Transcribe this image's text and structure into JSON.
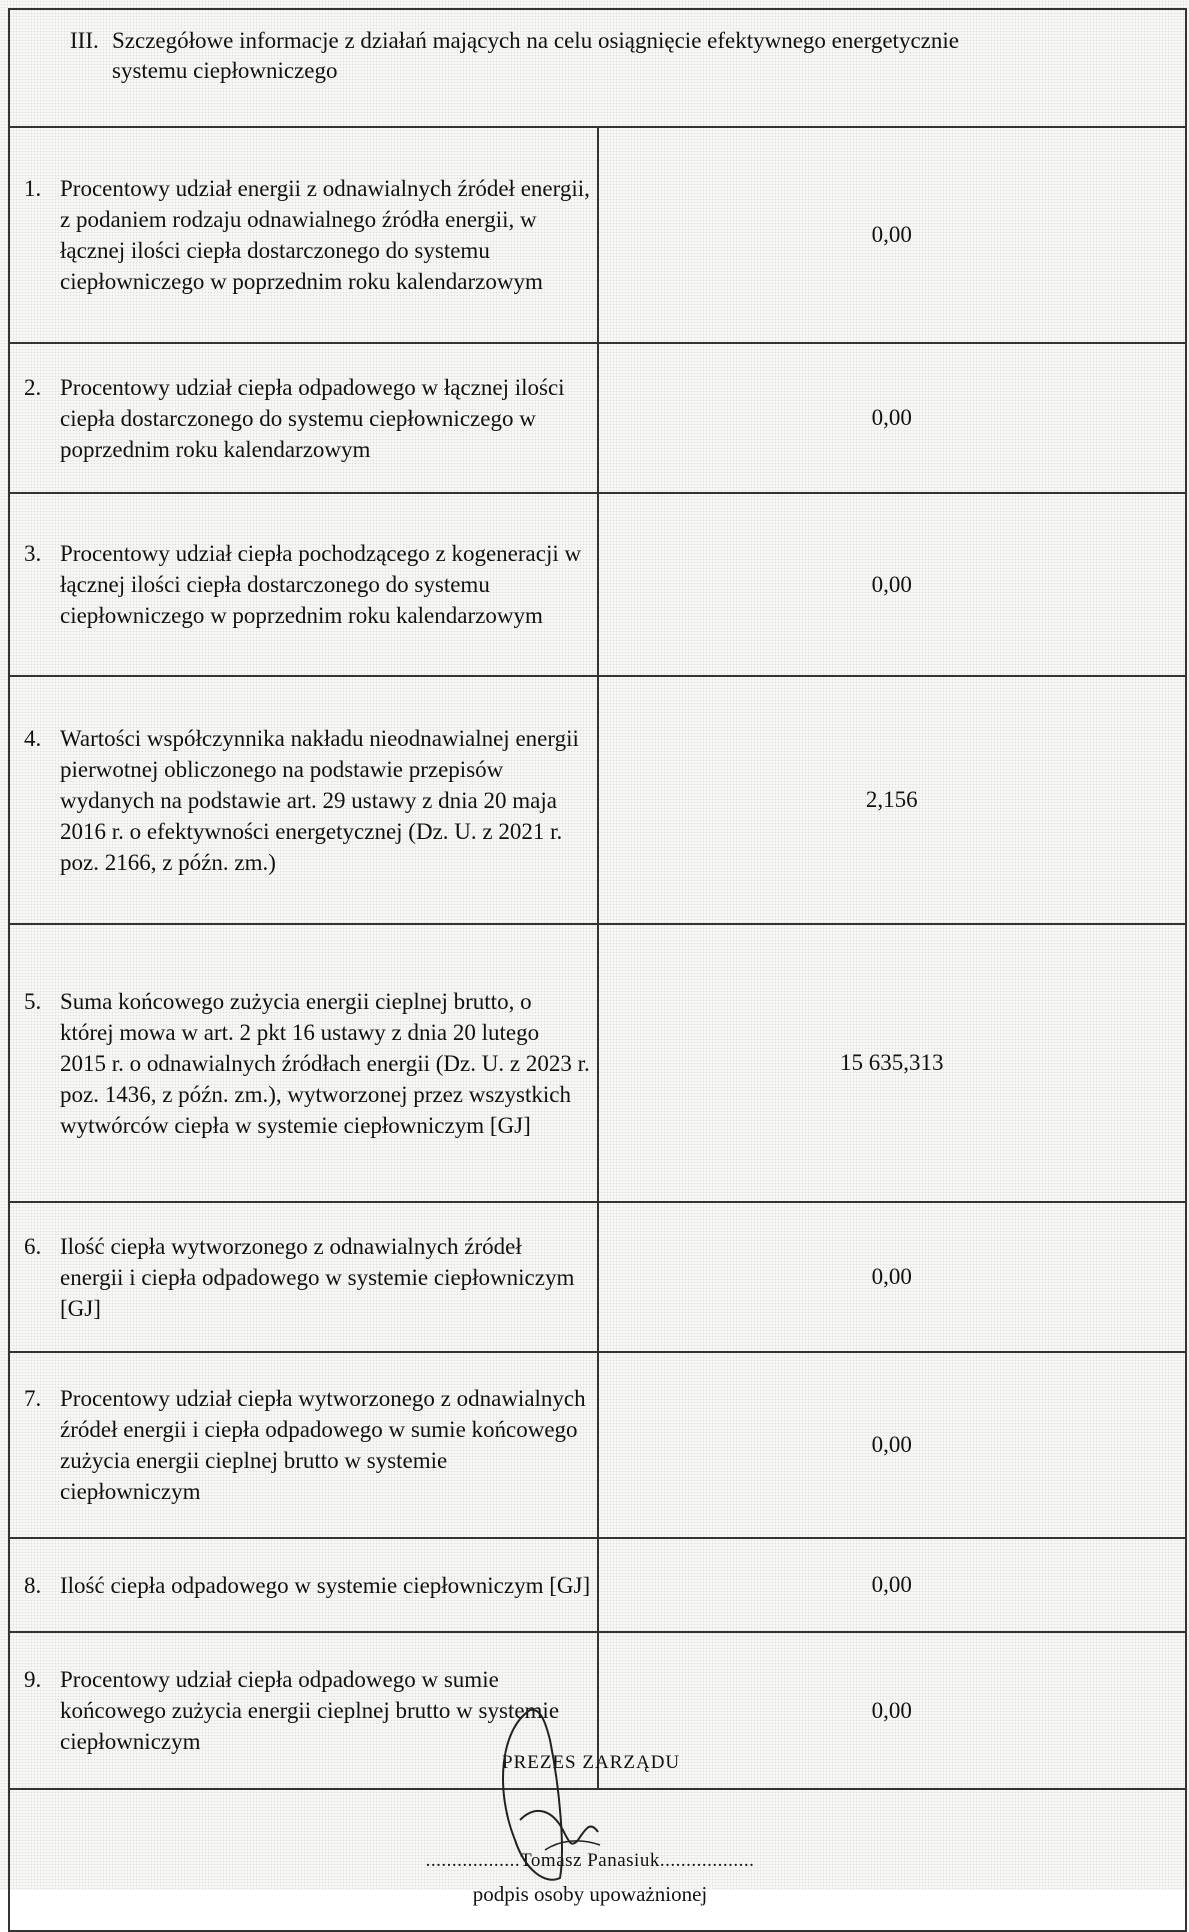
{
  "section": {
    "number": "III.",
    "title_line1": "Szczegółowe informacje z działań mających na celu osiągnięcie efektywnego energetycznie",
    "title_line2": "systemu ciepłowniczego"
  },
  "rows": [
    {
      "num": "1.",
      "label": "Procentowy udział energii z odnawialnych źródeł energii, z podaniem rodzaju odnawialnego źródła energii, w łącznej ilości ciepła dostarczonego do systemu ciepłowniczego w poprzednim roku kalendarzowym",
      "value": "0,00"
    },
    {
      "num": "2.",
      "label": "Procentowy udział ciepła odpadowego w łącznej ilości ciepła dostarczonego do systemu ciepłowniczego w poprzednim roku kalendarzowym",
      "value": "0,00"
    },
    {
      "num": "3.",
      "label": "Procentowy udział ciepła pochodzącego z kogeneracji w łącznej ilości ciepła dostarczonego do systemu ciepłowniczego w poprzednim roku kalendarzowym",
      "value": "0,00"
    },
    {
      "num": "4.",
      "label": "Wartości współczynnika nakładu nieodnawialnej energii pierwotnej obliczonego na podstawie przepisów wydanych na podstawie art. 29 ustawy z dnia 20 maja 2016 r. o efektywności energetycznej (Dz. U. z 2021 r. poz. 2166, z późn. zm.)",
      "value": "2,156"
    },
    {
      "num": "5.",
      "label": "Suma końcowego zużycia energii cieplnej brutto, o której mowa w art. 2 pkt 16 ustawy z dnia 20 lutego 2015 r. o odnawialnych źródłach energii (Dz. U. z 2023 r. poz. 1436, z późn. zm.), wytworzonej przez wszystkich wytwórców ciepła w systemie ciepłowniczym [GJ]",
      "value": "15 635,313"
    },
    {
      "num": "6.",
      "label": "Ilość ciepła wytworzonego z odnawialnych źródeł energii i ciepła odpadowego w systemie ciepłowniczym [GJ]",
      "value": "0,00"
    },
    {
      "num": "7.",
      "label": "Procentowy udział ciepła wytworzonego z odnawialnych źródeł energii i ciepła odpadowego w sumie końcowego zużycia energii cieplnej brutto w systemie ciepłowniczym",
      "value": "0,00"
    },
    {
      "num": "8.",
      "label": "Ilość ciepła odpadowego w systemie ciepłowniczym [GJ]",
      "value": "0,00"
    },
    {
      "num": "9.",
      "label": "Procentowy udział ciepła odpadowego w sumie końcowego zużycia energii cieplnej brutto w systemie ciepłowniczym",
      "value": "0,00"
    }
  ],
  "signature": {
    "stamp": "PREZES ZARZĄDU",
    "name_line": "..................Tomasz Panasiuk..................",
    "caption": "podpis osoby upoważnionej"
  }
}
